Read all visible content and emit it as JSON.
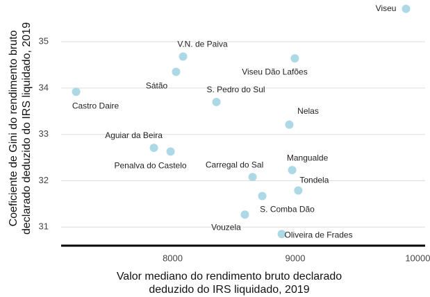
{
  "chart_data": {
    "type": "scatter",
    "x_label": [
      "Valor mediano do rendimento bruto declarado",
      "deduzido do IRS liquidado, 2019"
    ],
    "y_label": [
      "Coeficiente de Gini do rendimento bruto",
      "declarado deduzido do IRS liquidado, 2019"
    ],
    "series": [
      {
        "color": "#add8e6",
        "labels": [
          "Viseu",
          "V.N. de Paiva",
          "Sátão",
          "Viseu Dão Lafões",
          "Castro Daire",
          "S. Pedro do Sul",
          "Nelas",
          "Aguiar da Beira",
          "Penalva do Castelo",
          "Mangualde",
          "Carregal do Sal",
          "Tondela",
          "S. Comba Dão",
          "Vouzela",
          "Oliveira de Frades"
        ],
        "x": [
          9904,
          8085,
          8028,
          8997,
          7212,
          8357,
          8952,
          7847,
          7983,
          8975,
          8652,
          9025,
          8731,
          8589,
          8890
        ],
        "values": [
          35.71,
          34.68,
          34.35,
          34.64,
          33.92,
          33.7,
          33.21,
          32.71,
          32.63,
          32.23,
          32.08,
          31.79,
          31.67,
          31.27,
          30.85
        ]
      }
    ],
    "xlim": [
      7090,
      10060
    ],
    "xticks": [
      8000,
      9000,
      10000
    ],
    "ylim": [
      30.6,
      35.9
    ],
    "yticks": [
      31,
      32,
      33,
      34,
      35
    ],
    "grid": true
  }
}
